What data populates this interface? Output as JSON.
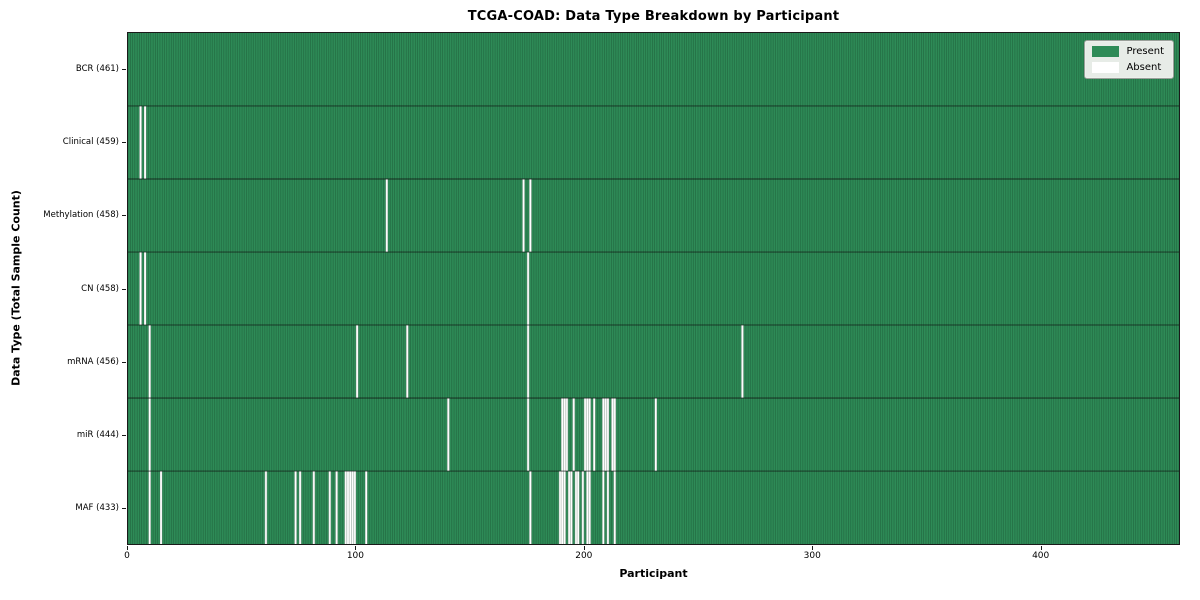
{
  "title": "TCGA-COAD: Data Type Breakdown by Participant",
  "xlabel": "Participant",
  "ylabel": "Data Type (Total Sample Count)",
  "legend": {
    "present_label": "Present",
    "absent_label": "Absent"
  },
  "colors": {
    "present": "#2E8B57",
    "absent": "#FFFFFF",
    "cell_edge": "rgba(10,30,18,0.45)",
    "row_border": "rgba(15,15,15,0.85)",
    "axis": "#1a1a1a",
    "legend_bg": "#e7ece7"
  },
  "chart_data": {
    "type": "heatmap",
    "title": "TCGA-COAD: Data Type Breakdown by Participant",
    "xlabel": "Participant",
    "ylabel": "Data Type (Total Sample Count)",
    "legend_entries": [
      "Present",
      "Absent"
    ],
    "legend_position": "upper right",
    "n_participants": 461,
    "x_ticks": [
      0,
      100,
      200,
      300,
      400
    ],
    "xlim": [
      0,
      461
    ],
    "rows": [
      {
        "name": "BCR",
        "label": "BCR (461)",
        "present_count": 461,
        "absent_count": 0,
        "absent_participants": []
      },
      {
        "name": "Clinical",
        "label": "Clinical (459)",
        "present_count": 459,
        "absent_count": 2,
        "absent_participants": [
          5,
          7
        ]
      },
      {
        "name": "Methylation",
        "label": "Methylation (458)",
        "present_count": 458,
        "absent_count": 3,
        "absent_participants": [
          113,
          173,
          176
        ]
      },
      {
        "name": "CN",
        "label": "CN (458)",
        "present_count": 458,
        "absent_count": 3,
        "absent_participants": [
          5,
          7,
          175
        ]
      },
      {
        "name": "mRNA",
        "label": "mRNA (456)",
        "present_count": 456,
        "absent_count": 5,
        "absent_participants": [
          9,
          100,
          122,
          175,
          269
        ]
      },
      {
        "name": "miR",
        "label": "miR (444)",
        "present_count": 444,
        "absent_count": 17,
        "absent_participants": [
          9,
          140,
          175,
          190,
          191,
          192,
          195,
          200,
          201,
          202,
          204,
          208,
          209,
          210,
          212,
          213,
          231
        ]
      },
      {
        "name": "MAF",
        "label": "MAF (433)",
        "present_count": 433,
        "absent_count": 28,
        "absent_participants": [
          9,
          14,
          60,
          73,
          75,
          81,
          88,
          91,
          95,
          96,
          97,
          98,
          99,
          104,
          176,
          189,
          190,
          191,
          193,
          194,
          196,
          197,
          199,
          201,
          202,
          208,
          210,
          213
        ]
      }
    ]
  }
}
